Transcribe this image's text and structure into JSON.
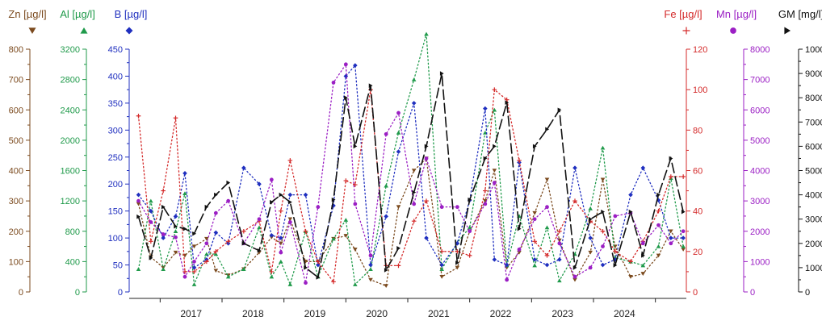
{
  "chart_data": {
    "type": "line",
    "x_labels": [
      "2017",
      "2018",
      "2019",
      "2020",
      "2021",
      "2022",
      "2023",
      "2024"
    ],
    "legend_placement": "top",
    "grid": false,
    "axes": [
      {
        "id": "zn",
        "title": "Zn [µg/l]",
        "color": "#7b4a1e",
        "side": "left",
        "range": [
          0,
          800
        ],
        "ticks": [
          "0",
          "100",
          "200",
          "300",
          "400",
          "500",
          "600",
          "700",
          "800"
        ],
        "marker": "triangle-down"
      },
      {
        "id": "al",
        "title": "Al [µg/l]",
        "color": "#1f9a4a",
        "side": "left",
        "range": [
          0,
          3200
        ],
        "ticks": [
          "0",
          "400",
          "800",
          "1200",
          "1600",
          "2000",
          "2400",
          "2800",
          "3200"
        ],
        "marker": "triangle-up"
      },
      {
        "id": "b",
        "title": "B [µg/l]",
        "color": "#1f2fbf",
        "side": "left",
        "range": [
          0,
          450
        ],
        "ticks": [
          "0",
          "50",
          "100",
          "150",
          "200",
          "250",
          "300",
          "350",
          "400",
          "450"
        ],
        "marker": "diamond"
      },
      {
        "id": "fe",
        "title": "Fe [µg/l]",
        "color": "#d42a2a",
        "side": "right",
        "range": [
          0,
          120
        ],
        "ticks": [
          "0",
          "20",
          "40",
          "60",
          "80",
          "100",
          "120"
        ],
        "marker": "plus"
      },
      {
        "id": "mn",
        "title": "Mn [µg/l]",
        "color": "#9b1fc4",
        "side": "right",
        "range": [
          0,
          8000
        ],
        "ticks": [
          "0",
          "1000",
          "2000",
          "3000",
          "4000",
          "5000",
          "6000",
          "7000",
          "8000"
        ],
        "marker": "circle"
      },
      {
        "id": "gm",
        "title": "GM [mg/l]",
        "color": "#111111",
        "side": "right",
        "range": [
          0,
          100000
        ],
        "ticks": [
          "0",
          "10000",
          "20000",
          "30000",
          "40000",
          "50000",
          "60000",
          "70000",
          "80000",
          "90000",
          "100000"
        ],
        "marker": "triangle-right"
      }
    ],
    "series": [
      {
        "axis": "zn",
        "line": "dotted",
        "points": [
          [
            0.15,
            290
          ],
          [
            0.35,
            115
          ],
          [
            0.55,
            80
          ],
          [
            0.75,
            130
          ],
          [
            0.9,
            120
          ],
          [
            1.05,
            150
          ],
          [
            1.25,
            175
          ],
          [
            1.4,
            70
          ],
          [
            1.6,
            55
          ],
          [
            1.85,
            75
          ],
          [
            2.1,
            130
          ],
          [
            2.3,
            180
          ],
          [
            2.45,
            160
          ],
          [
            2.6,
            240
          ],
          [
            2.85,
            100
          ],
          [
            3.05,
            100
          ],
          [
            3.3,
            175
          ],
          [
            3.5,
            185
          ],
          [
            3.65,
            140
          ],
          [
            3.9,
            40
          ],
          [
            4.15,
            20
          ],
          [
            4.35,
            280
          ],
          [
            4.6,
            400
          ],
          [
            4.8,
            440
          ],
          [
            5.05,
            50
          ],
          [
            5.3,
            80
          ],
          [
            5.5,
            200
          ],
          [
            5.75,
            300
          ],
          [
            5.9,
            400
          ],
          [
            6.1,
            80
          ],
          [
            6.3,
            130
          ],
          [
            6.55,
            260
          ],
          [
            6.75,
            370
          ],
          [
            6.95,
            170
          ],
          [
            7.2,
            40
          ],
          [
            7.45,
            130
          ],
          [
            7.65,
            370
          ],
          [
            7.85,
            150
          ],
          [
            8.1,
            50
          ],
          [
            8.3,
            60
          ],
          [
            8.55,
            120
          ],
          [
            8.75,
            200
          ],
          [
            8.95,
            140
          ]
        ]
      },
      {
        "axis": "al",
        "line": "dotted",
        "points": [
          [
            0.15,
            300
          ],
          [
            0.35,
            1200
          ],
          [
            0.55,
            300
          ],
          [
            0.75,
            800
          ],
          [
            0.9,
            1300
          ],
          [
            1.05,
            100
          ],
          [
            1.25,
            500
          ],
          [
            1.4,
            500
          ],
          [
            1.6,
            200
          ],
          [
            1.85,
            300
          ],
          [
            2.1,
            850
          ],
          [
            2.3,
            200
          ],
          [
            2.45,
            400
          ],
          [
            2.6,
            100
          ],
          [
            2.85,
            800
          ],
          [
            3.05,
            200
          ],
          [
            3.3,
            700
          ],
          [
            3.5,
            950
          ],
          [
            3.65,
            100
          ],
          [
            3.9,
            300
          ],
          [
            4.15,
            1400
          ],
          [
            4.35,
            2100
          ],
          [
            4.6,
            2800
          ],
          [
            4.8,
            3400
          ],
          [
            5.05,
            300
          ],
          [
            5.3,
            650
          ],
          [
            5.5,
            850
          ],
          [
            5.75,
            2100
          ],
          [
            5.9,
            2400
          ],
          [
            6.1,
            350
          ],
          [
            6.3,
            1000
          ],
          [
            6.55,
            350
          ],
          [
            6.75,
            850
          ],
          [
            6.95,
            150
          ],
          [
            7.2,
            500
          ],
          [
            7.45,
            1100
          ],
          [
            7.65,
            1900
          ],
          [
            7.85,
            450
          ],
          [
            8.1,
            400
          ],
          [
            8.3,
            350
          ],
          [
            8.55,
            600
          ],
          [
            8.75,
            1500
          ],
          [
            8.95,
            600
          ]
        ]
      },
      {
        "axis": "b",
        "line": "dotted",
        "points": [
          [
            0.15,
            180
          ],
          [
            0.35,
            150
          ],
          [
            0.55,
            100
          ],
          [
            0.75,
            140
          ],
          [
            0.9,
            220
          ],
          [
            1.05,
            45
          ],
          [
            1.25,
            60
          ],
          [
            1.4,
            110
          ],
          [
            1.6,
            90
          ],
          [
            1.85,
            230
          ],
          [
            2.1,
            200
          ],
          [
            2.3,
            105
          ],
          [
            2.45,
            100
          ],
          [
            2.6,
            180
          ],
          [
            2.85,
            180
          ],
          [
            3.05,
            50
          ],
          [
            3.3,
            160
          ],
          [
            3.5,
            400
          ],
          [
            3.65,
            420
          ],
          [
            3.9,
            50
          ],
          [
            4.15,
            140
          ],
          [
            4.35,
            260
          ],
          [
            4.6,
            350
          ],
          [
            4.8,
            100
          ],
          [
            5.05,
            50
          ],
          [
            5.3,
            90
          ],
          [
            5.5,
            170
          ],
          [
            5.75,
            340
          ],
          [
            5.9,
            60
          ],
          [
            6.1,
            50
          ],
          [
            6.3,
            240
          ],
          [
            6.55,
            60
          ],
          [
            6.75,
            50
          ],
          [
            6.95,
            60
          ],
          [
            7.2,
            230
          ],
          [
            7.45,
            100
          ],
          [
            7.65,
            50
          ],
          [
            7.85,
            60
          ],
          [
            8.1,
            180
          ],
          [
            8.3,
            230
          ],
          [
            8.55,
            170
          ],
          [
            8.75,
            100
          ],
          [
            8.95,
            100
          ]
        ]
      },
      {
        "axis": "fe",
        "line": "dotted",
        "points": [
          [
            0.15,
            87
          ],
          [
            0.35,
            25
          ],
          [
            0.55,
            50
          ],
          [
            0.75,
            86
          ],
          [
            0.9,
            10
          ],
          [
            1.05,
            10
          ],
          [
            1.25,
            15
          ],
          [
            1.4,
            20
          ],
          [
            1.6,
            25
          ],
          [
            1.85,
            30
          ],
          [
            2.1,
            35
          ],
          [
            2.3,
            10
          ],
          [
            2.45,
            40
          ],
          [
            2.6,
            65
          ],
          [
            2.85,
            30
          ],
          [
            3.05,
            15
          ],
          [
            3.3,
            5
          ],
          [
            3.5,
            55
          ],
          [
            3.65,
            53
          ],
          [
            3.9,
            100
          ],
          [
            4.15,
            13
          ],
          [
            4.35,
            13
          ],
          [
            4.6,
            35
          ],
          [
            4.8,
            45
          ],
          [
            5.05,
            20
          ],
          [
            5.3,
            20
          ],
          [
            5.5,
            18
          ],
          [
            5.75,
            50
          ],
          [
            5.9,
            100
          ],
          [
            6.1,
            95
          ],
          [
            6.3,
            65
          ],
          [
            6.55,
            25
          ],
          [
            6.75,
            18
          ],
          [
            6.95,
            30
          ],
          [
            7.2,
            45
          ],
          [
            7.45,
            35
          ],
          [
            7.65,
            30
          ],
          [
            7.85,
            20
          ],
          [
            8.1,
            15
          ],
          [
            8.3,
            25
          ],
          [
            8.55,
            40
          ],
          [
            8.75,
            57
          ],
          [
            8.95,
            57
          ]
        ]
      },
      {
        "axis": "mn",
        "line": "dotted",
        "points": [
          [
            0.15,
            3000
          ],
          [
            0.35,
            2300
          ],
          [
            0.55,
            1900
          ],
          [
            0.75,
            1800
          ],
          [
            0.9,
            500
          ],
          [
            1.05,
            1000
          ],
          [
            1.25,
            1600
          ],
          [
            1.4,
            2600
          ],
          [
            1.6,
            3000
          ],
          [
            1.85,
            1600
          ],
          [
            2.1,
            2400
          ],
          [
            2.3,
            3700
          ],
          [
            2.45,
            1300
          ],
          [
            2.6,
            2300
          ],
          [
            2.85,
            300
          ],
          [
            3.05,
            2800
          ],
          [
            3.3,
            6900
          ],
          [
            3.5,
            7500
          ],
          [
            3.65,
            2900
          ],
          [
            3.9,
            1200
          ],
          [
            4.15,
            5200
          ],
          [
            4.35,
            5900
          ],
          [
            4.6,
            2900
          ],
          [
            4.8,
            4400
          ],
          [
            5.05,
            2800
          ],
          [
            5.3,
            2800
          ],
          [
            5.5,
            2000
          ],
          [
            5.75,
            2900
          ],
          [
            5.9,
            3600
          ],
          [
            6.1,
            400
          ],
          [
            6.3,
            1400
          ],
          [
            6.55,
            2400
          ],
          [
            6.75,
            2800
          ],
          [
            6.95,
            1600
          ],
          [
            7.2,
            500
          ],
          [
            7.45,
            800
          ],
          [
            7.65,
            1500
          ],
          [
            7.85,
            2500
          ],
          [
            8.1,
            2600
          ],
          [
            8.3,
            1600
          ],
          [
            8.55,
            2200
          ],
          [
            8.75,
            1600
          ],
          [
            8.95,
            2000
          ]
        ]
      },
      {
        "axis": "gm",
        "line": "dashed",
        "points": [
          [
            0.15,
            31000
          ],
          [
            0.35,
            14000
          ],
          [
            0.55,
            35000
          ],
          [
            0.75,
            27000
          ],
          [
            0.9,
            26000
          ],
          [
            1.05,
            24000
          ],
          [
            1.25,
            35000
          ],
          [
            1.4,
            40000
          ],
          [
            1.6,
            45000
          ],
          [
            1.85,
            20000
          ],
          [
            2.1,
            17000
          ],
          [
            2.3,
            37000
          ],
          [
            2.45,
            40000
          ],
          [
            2.6,
            37000
          ],
          [
            2.85,
            10000
          ],
          [
            3.05,
            6000
          ],
          [
            3.3,
            38000
          ],
          [
            3.5,
            80000
          ],
          [
            3.65,
            60000
          ],
          [
            3.9,
            85000
          ],
          [
            4.15,
            9000
          ],
          [
            4.35,
            18000
          ],
          [
            4.6,
            41000
          ],
          [
            4.8,
            60000
          ],
          [
            5.05,
            90000
          ],
          [
            5.3,
            12000
          ],
          [
            5.5,
            38000
          ],
          [
            5.75,
            55000
          ],
          [
            5.9,
            60000
          ],
          [
            6.1,
            78000
          ],
          [
            6.3,
            26000
          ],
          [
            6.55,
            60000
          ],
          [
            6.75,
            67000
          ],
          [
            6.95,
            75000
          ],
          [
            7.2,
            10000
          ],
          [
            7.45,
            30000
          ],
          [
            7.65,
            33000
          ],
          [
            7.85,
            11000
          ],
          [
            8.1,
            33000
          ],
          [
            8.3,
            15000
          ],
          [
            8.55,
            40000
          ],
          [
            8.75,
            55000
          ],
          [
            8.95,
            33000
          ]
        ]
      }
    ]
  }
}
